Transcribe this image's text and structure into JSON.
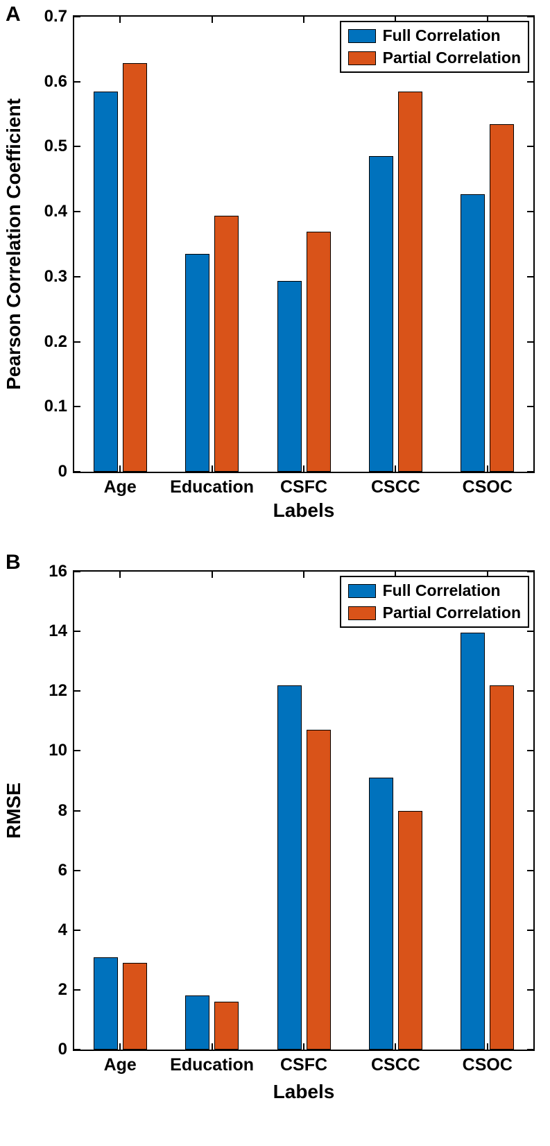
{
  "panel_labels": [
    "A",
    "B"
  ],
  "colors": {
    "full_correlation": "#0072BD",
    "partial_correlation": "#D95319",
    "axis": "#000000",
    "background": "#FFFFFF"
  },
  "chart_data": [
    {
      "type": "bar",
      "panel": "A",
      "title": "",
      "xlabel": "Labels",
      "ylabel": "Pearson Correlation Coefficient",
      "categories": [
        "Age",
        "Education",
        "CSFC",
        "CSCC",
        "CSOC"
      ],
      "series": [
        {
          "name": "Full Correlation",
          "color": "#0072BD",
          "values": [
            0.585,
            0.335,
            0.293,
            0.485,
            0.427
          ]
        },
        {
          "name": "Partial Correlation",
          "color": "#D95319",
          "values": [
            0.628,
            0.394,
            0.369,
            0.585,
            0.535
          ]
        }
      ],
      "ylim": [
        0,
        0.7
      ],
      "yticks": [
        0,
        0.1,
        0.2,
        0.3,
        0.4,
        0.5,
        0.6,
        0.7
      ],
      "ytick_labels": [
        "0",
        "0.1",
        "0.2",
        "0.3",
        "0.4",
        "0.5",
        "0.6",
        "0.7"
      ],
      "grid": false,
      "legend": {
        "position": "top-right",
        "entries": [
          "Full Correlation",
          "Partial Correlation"
        ]
      }
    },
    {
      "type": "bar",
      "panel": "B",
      "title": "",
      "xlabel": "Labels",
      "ylabel": "RMSE",
      "categories": [
        "Age",
        "Education",
        "CSFC",
        "CSCC",
        "CSOC"
      ],
      "series": [
        {
          "name": "Full Correlation",
          "color": "#0072BD",
          "values": [
            3.1,
            1.8,
            12.2,
            9.1,
            13.95
          ]
        },
        {
          "name": "Partial Correlation",
          "color": "#D95319",
          "values": [
            2.9,
            1.6,
            10.7,
            8.0,
            12.2
          ]
        }
      ],
      "ylim": [
        0,
        16
      ],
      "yticks": [
        0,
        2,
        4,
        6,
        8,
        10,
        12,
        14,
        16
      ],
      "ytick_labels": [
        "0",
        "2",
        "4",
        "6",
        "8",
        "10",
        "12",
        "14",
        "16"
      ],
      "grid": false,
      "legend": {
        "position": "top-right",
        "entries": [
          "Full Correlation",
          "Partial Correlation"
        ]
      }
    }
  ]
}
